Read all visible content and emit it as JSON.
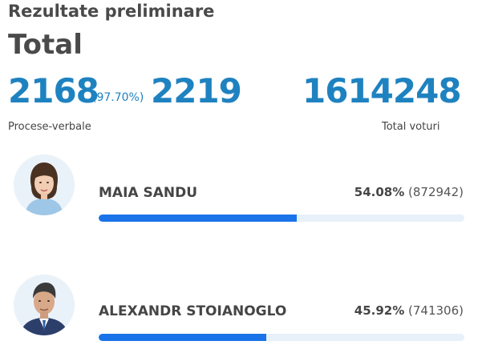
{
  "header": {
    "section_title": "Rezultate preliminare",
    "total_title": "Total"
  },
  "counts": {
    "processed_reports": "2168",
    "processed_percent": "(97.70%)",
    "total_reports": "2219",
    "total_votes": "1614248",
    "reports_caption": "Procese-verbale",
    "votes_caption": "Total voturi"
  },
  "candidates": [
    {
      "name": "MAIA SANDU",
      "percent_label": "54.08%",
      "votes_label": "(872942)",
      "share": 0.5408,
      "avatar_icon": "portrait-woman-icon"
    },
    {
      "name": "ALEXANDR STOIANOGLO",
      "percent_label": "45.92%",
      "votes_label": "(741306)",
      "share": 0.4592,
      "avatar_icon": "portrait-man-icon"
    }
  ],
  "colors": {
    "accent_blue": "#1f82c0",
    "bar_fill": "#1a73e8",
    "bar_track": "#e8f0fa"
  }
}
